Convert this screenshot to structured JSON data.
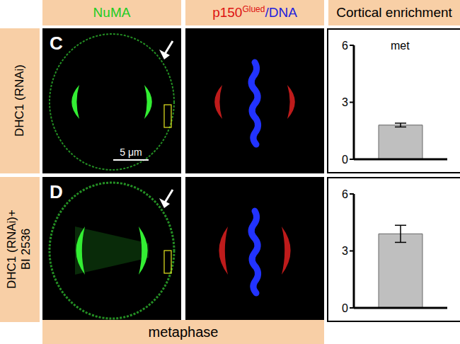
{
  "columns": [
    {
      "parts": [
        {
          "text": "NuMA",
          "color": "#22cc22"
        }
      ]
    },
    {
      "parts": [
        {
          "text": "p150",
          "color": "#dd1111"
        },
        {
          "text": "Glued",
          "color": "#dd1111",
          "sup": true
        },
        {
          "text": "/DNA",
          "color": "#2222dd"
        }
      ]
    },
    {
      "parts": [
        {
          "text": "Cortical enrichment",
          "color": "#000000"
        }
      ]
    }
  ],
  "rows": [
    {
      "panel": "C",
      "label": [
        "DHC1 (RNAi)"
      ],
      "scale_bar": "5 μm"
    },
    {
      "panel": "D",
      "label": [
        "DHC1 (RNAi)+",
        "BI 2536"
      ]
    }
  ],
  "footer": "metaphase",
  "chart_data": [
    {
      "type": "bar",
      "annotation": "met",
      "categories": [
        null
      ],
      "values": [
        1.8
      ],
      "errors": [
        0.1
      ],
      "ylim": [
        0,
        6
      ],
      "yticks": [
        0,
        3,
        6
      ],
      "tick_labels": "y",
      "color": "#bfbfbf"
    },
    {
      "type": "bar",
      "categories": [
        null
      ],
      "values": [
        3.9
      ],
      "errors": [
        0.45
      ],
      "ylim": [
        0,
        6
      ],
      "yticks": [
        0,
        3,
        6
      ],
      "tick_labels": "y",
      "color": "#bfbfbf"
    }
  ]
}
